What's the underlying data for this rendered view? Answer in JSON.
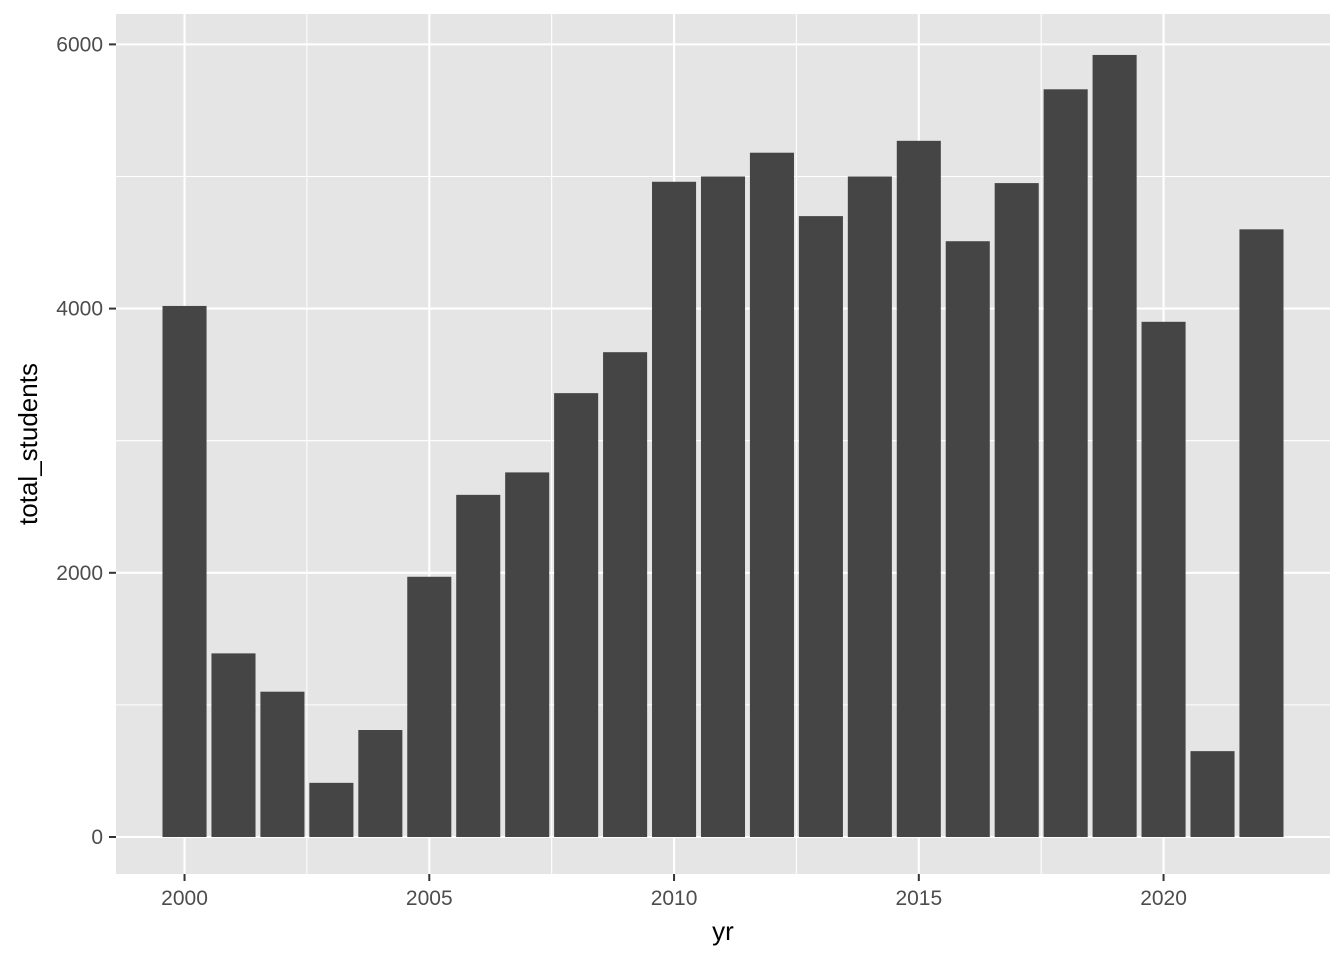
{
  "colors": {
    "panel_background": "#e5e5e5",
    "gridline": "#ffffff",
    "bar_fill": "#454545",
    "tick_text": "#4d4d4d",
    "tick_mark": "#333333",
    "axis_title": "#000000"
  },
  "chart_data": {
    "type": "bar",
    "xlabel": "yr",
    "ylabel": "total_students",
    "xlim": [
      1998.6,
      2023.4
    ],
    "ylim": [
      -280,
      6230
    ],
    "x_ticks": [
      2000,
      2005,
      2010,
      2015,
      2020
    ],
    "x_tick_labels": [
      "2000",
      "2005",
      "2010",
      "2015",
      "2020"
    ],
    "y_ticks": [
      0,
      2000,
      4000,
      6000
    ],
    "y_tick_labels": [
      "0",
      "2000",
      "4000",
      "6000"
    ],
    "grid": true,
    "legend": "none",
    "x": [
      2000,
      2001,
      2002,
      2003,
      2004,
      2005,
      2006,
      2007,
      2008,
      2009,
      2010,
      2011,
      2012,
      2013,
      2014,
      2015,
      2016,
      2017,
      2018,
      2019,
      2020,
      2021,
      2022
    ],
    "values": [
      4020,
      1390,
      1100,
      410,
      810,
      1970,
      2590,
      2760,
      3360,
      3670,
      4960,
      5000,
      5180,
      4700,
      5000,
      5270,
      4510,
      4950,
      5660,
      5920,
      3900,
      650,
      4600
    ]
  }
}
